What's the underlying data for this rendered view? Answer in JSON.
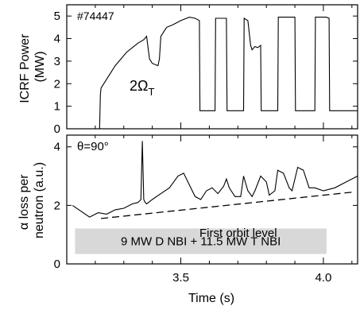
{
  "chart_data": [
    {
      "type": "line",
      "panel": "top",
      "shot_label": "#74447",
      "ylabel_lines": [
        "ICRF Power",
        "(MW)"
      ],
      "annotation": {
        "main": "2Ω",
        "sub": "T"
      },
      "yticks": [
        0,
        1,
        2,
        3,
        4,
        5
      ],
      "ylim": [
        0,
        5.5
      ],
      "xlim": [
        3.1,
        4.12
      ],
      "grid": false,
      "series": [
        {
          "x": [
            3.1,
            3.215,
            3.218,
            3.22,
            3.23,
            3.25,
            3.27,
            3.29,
            3.31,
            3.33,
            3.35,
            3.37,
            3.38,
            3.385,
            3.39,
            3.4,
            3.42,
            3.425,
            3.43,
            3.45,
            3.47,
            3.5,
            3.53,
            3.55,
            3.565,
            3.567,
            3.62,
            3.622,
            3.66,
            3.662,
            3.72,
            3.722,
            3.735,
            3.745,
            3.75,
            3.76,
            3.77,
            3.78,
            3.782,
            3.84,
            3.842,
            3.9,
            3.902,
            3.97,
            3.972,
            4.01,
            4.02,
            4.022,
            4.12
          ],
          "y": [
            0,
            0,
            1.5,
            1.8,
            2.0,
            2.4,
            2.8,
            3.1,
            3.4,
            3.6,
            3.8,
            3.95,
            4.1,
            3.6,
            3.1,
            2.9,
            2.8,
            3.1,
            4.1,
            4.5,
            4.6,
            4.8,
            4.95,
            4.9,
            4.8,
            0.8,
            0.8,
            4.9,
            4.9,
            0.8,
            0.8,
            4.9,
            4.8,
            3.7,
            3.5,
            3.65,
            3.6,
            3.7,
            0.8,
            0.8,
            4.95,
            4.95,
            0.8,
            0.8,
            4.95,
            4.95,
            4.9,
            0.8,
            0.8
          ]
        }
      ]
    },
    {
      "type": "line",
      "panel": "bottom",
      "angle_label": "θ=90°",
      "ylabel_lines": [
        "α loss per",
        "neutron (a.u.)"
      ],
      "xlabel": "Time (s)",
      "xticks": [
        "3.5",
        "4.0"
      ],
      "xtick_values": [
        3.5,
        4.0
      ],
      "yticks": [
        0,
        2,
        4
      ],
      "ylim": [
        0,
        4.4
      ],
      "xlim": [
        3.1,
        4.12
      ],
      "grid": false,
      "series": [
        {
          "name": "signal",
          "x": [
            3.12,
            3.15,
            3.18,
            3.21,
            3.24,
            3.27,
            3.3,
            3.33,
            3.35,
            3.36,
            3.365,
            3.37,
            3.375,
            3.38,
            3.4,
            3.43,
            3.46,
            3.49,
            3.51,
            3.53,
            3.55,
            3.57,
            3.59,
            3.61,
            3.63,
            3.65,
            3.66,
            3.67,
            3.69,
            3.71,
            3.72,
            3.735,
            3.75,
            3.76,
            3.78,
            3.8,
            3.81,
            3.83,
            3.84,
            3.86,
            3.88,
            3.89,
            3.91,
            3.93,
            3.95,
            3.97,
            4.0,
            4.04,
            4.08,
            4.12
          ],
          "y": [
            2.0,
            1.8,
            1.6,
            1.75,
            1.7,
            1.85,
            1.9,
            2.05,
            2.1,
            2.2,
            4.2,
            2.2,
            2.1,
            2.05,
            2.2,
            2.4,
            2.6,
            3.0,
            3.1,
            2.7,
            2.3,
            2.2,
            2.5,
            2.6,
            2.4,
            2.65,
            2.9,
            2.6,
            2.3,
            2.3,
            3.0,
            2.5,
            2.3,
            2.5,
            3.0,
            2.8,
            2.35,
            2.5,
            3.2,
            3.1,
            2.6,
            2.5,
            3.3,
            3.2,
            2.6,
            2.6,
            2.5,
            2.6,
            2.8,
            3.0
          ]
        },
        {
          "name": "First orbit level",
          "style": "dashed",
          "x": [
            3.22,
            4.1
          ],
          "y": [
            1.55,
            2.45
          ]
        }
      ],
      "bands": [
        {
          "label": "9 MW D NBI + 11.5 MW T NBI",
          "x": [
            3.13,
            4.01
          ],
          "y": [
            0.35,
            1.2
          ]
        }
      ]
    }
  ]
}
